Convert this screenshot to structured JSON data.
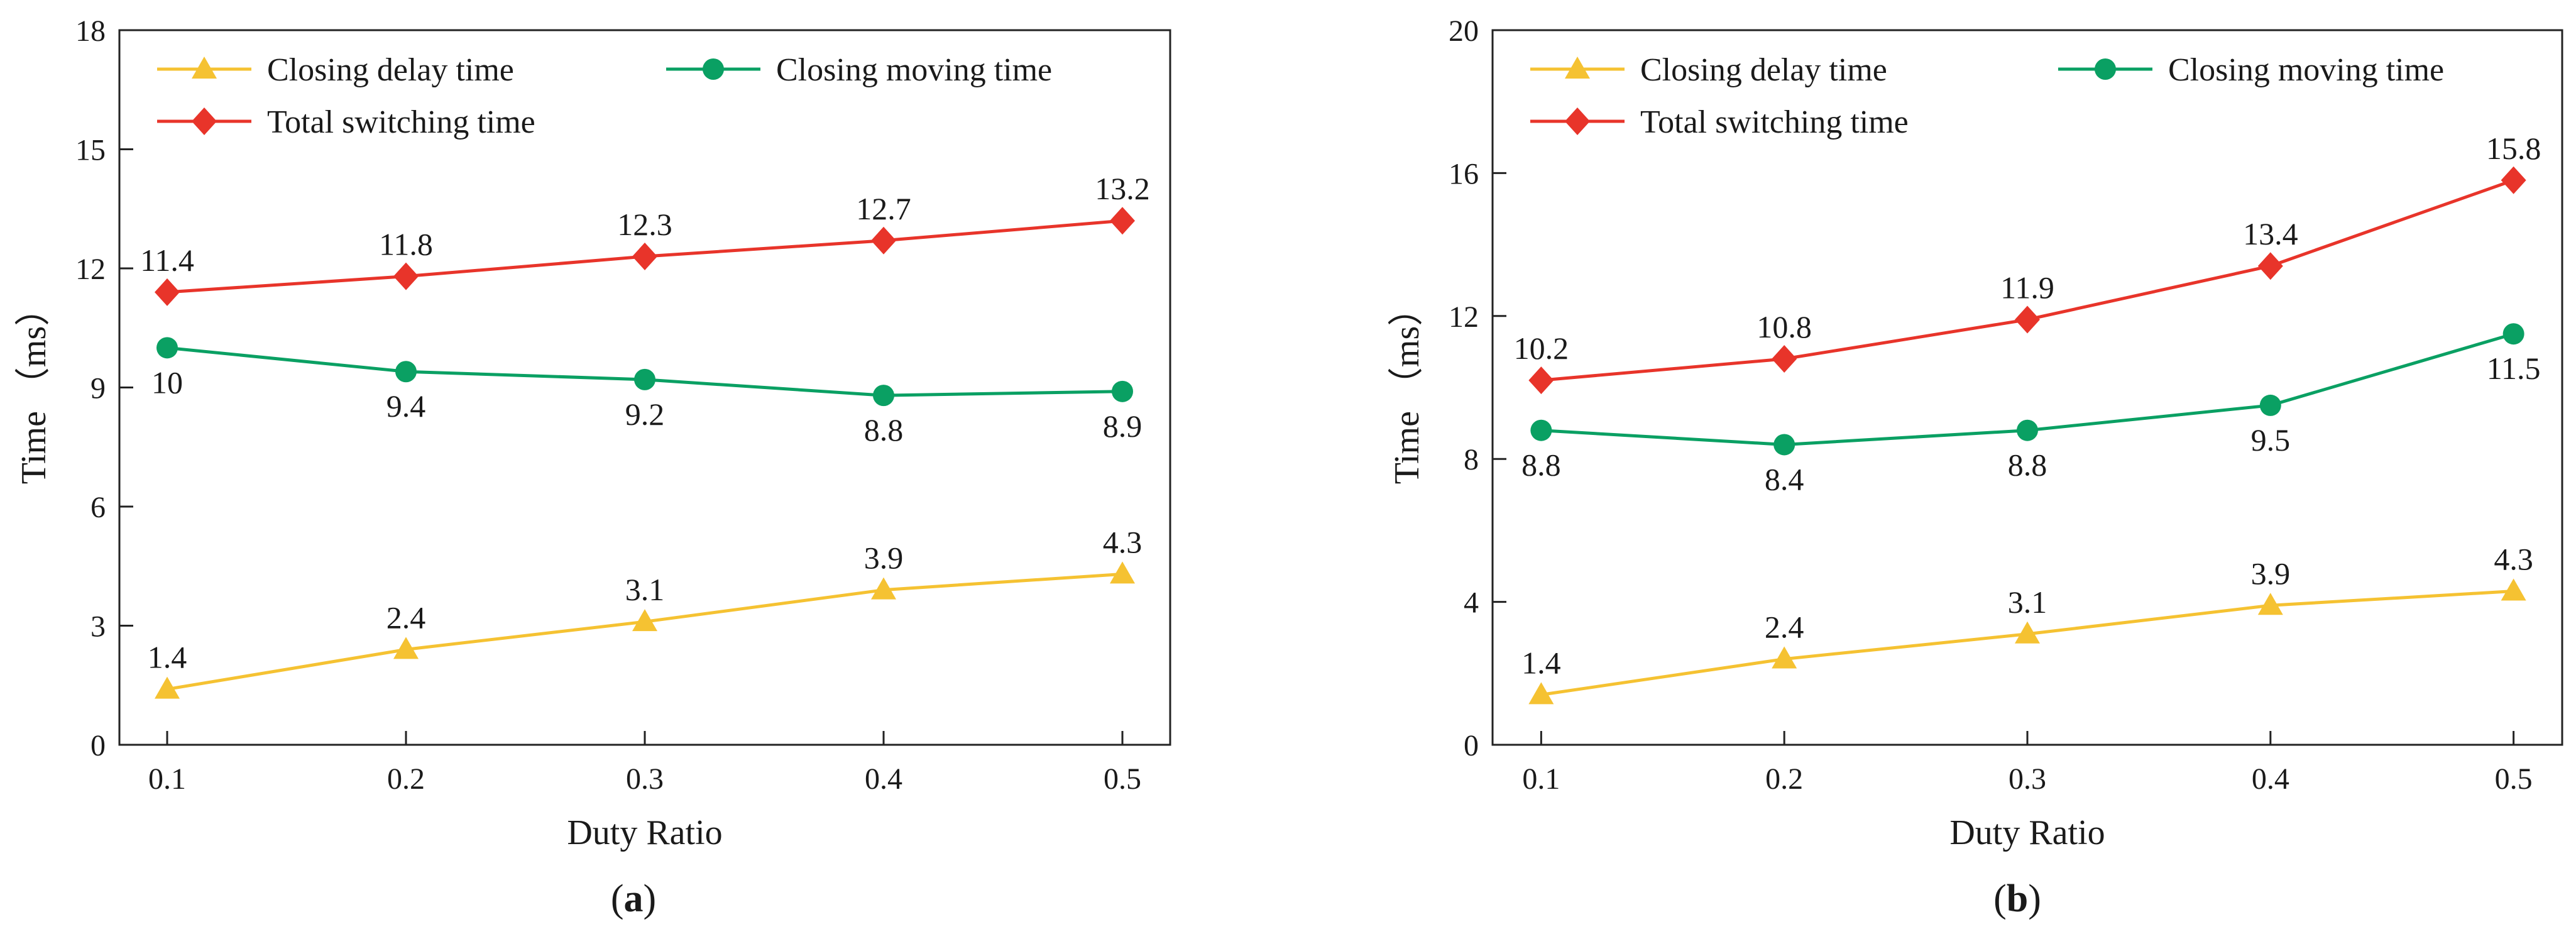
{
  "chart_data": [
    {
      "type": "line",
      "panel_label": "a",
      "xlabel": "Duty Ratio",
      "ylabel": "Time （ms）",
      "x": [
        0.1,
        0.2,
        0.3,
        0.4,
        0.5
      ],
      "x_tick_labels": [
        "0.1",
        "0.2",
        "0.3",
        "0.4",
        "0.5"
      ],
      "xlim": [
        0.08,
        0.52
      ],
      "ylim": [
        0,
        18
      ],
      "y_ticks": [
        0,
        3,
        6,
        9,
        12,
        15,
        18
      ],
      "y_tick_labels": [
        "0",
        "3",
        "6",
        "9",
        "12",
        "15",
        "18"
      ],
      "grid": false,
      "legend_position": "top",
      "series": [
        {
          "name": "Closing delay time",
          "marker": "triangle",
          "color": "#f5c232",
          "values": [
            1.4,
            2.4,
            3.1,
            3.9,
            4.3
          ],
          "labels": [
            "1.4",
            "2.4",
            "3.1",
            "3.9",
            "4.3"
          ],
          "label_side": [
            "above",
            "above",
            "above",
            "above",
            "above"
          ]
        },
        {
          "name": "Closing moving time",
          "marker": "circle",
          "color": "#0aa063",
          "values": [
            10,
            9.4,
            9.2,
            8.8,
            8.9
          ],
          "labels": [
            "10",
            "9.4",
            "9.2",
            "8.8",
            "8.9"
          ],
          "label_side": [
            "below",
            "below",
            "below",
            "below",
            "below"
          ]
        },
        {
          "name": "Total switching time",
          "marker": "diamond",
          "color": "#e8342a",
          "values": [
            11.4,
            11.8,
            12.3,
            12.7,
            13.2
          ],
          "labels": [
            "11.4",
            "11.8",
            "12.3",
            "12.7",
            "13.2"
          ],
          "label_side": [
            "above",
            "above",
            "above",
            "above",
            "above"
          ]
        }
      ]
    },
    {
      "type": "line",
      "panel_label": "b",
      "xlabel": "Duty Ratio",
      "ylabel": "Time （ms）",
      "x": [
        0.1,
        0.2,
        0.3,
        0.4,
        0.5
      ],
      "x_tick_labels": [
        "0.1",
        "0.2",
        "0.3",
        "0.4",
        "0.5"
      ],
      "xlim": [
        0.08,
        0.52
      ],
      "ylim": [
        0,
        20
      ],
      "y_ticks": [
        0,
        4,
        8,
        12,
        16,
        20
      ],
      "y_tick_labels": [
        "0",
        "4",
        "8",
        "12",
        "16",
        "20"
      ],
      "grid": false,
      "legend_position": "top",
      "series": [
        {
          "name": "Closing delay time",
          "marker": "triangle",
          "color": "#f5c232",
          "values": [
            1.4,
            2.4,
            3.1,
            3.9,
            4.3
          ],
          "labels": [
            "1.4",
            "2.4",
            "3.1",
            "3.9",
            "4.3"
          ],
          "label_side": [
            "above",
            "above",
            "above",
            "above",
            "above"
          ]
        },
        {
          "name": "Closing moving time",
          "marker": "circle",
          "color": "#0aa063",
          "values": [
            8.8,
            8.4,
            8.8,
            9.5,
            11.5
          ],
          "labels": [
            "8.8",
            "8.4",
            "8.8",
            "9.5",
            "11.5"
          ],
          "label_side": [
            "below",
            "below",
            "below",
            "below",
            "below"
          ]
        },
        {
          "name": "Total switching time",
          "marker": "diamond",
          "color": "#e8342a",
          "values": [
            10.2,
            10.8,
            11.9,
            13.4,
            15.8
          ],
          "labels": [
            "10.2",
            "10.8",
            "11.9",
            "13.4",
            "15.8"
          ],
          "label_side": [
            "above",
            "above",
            "above",
            "above",
            "above"
          ]
        }
      ]
    }
  ]
}
